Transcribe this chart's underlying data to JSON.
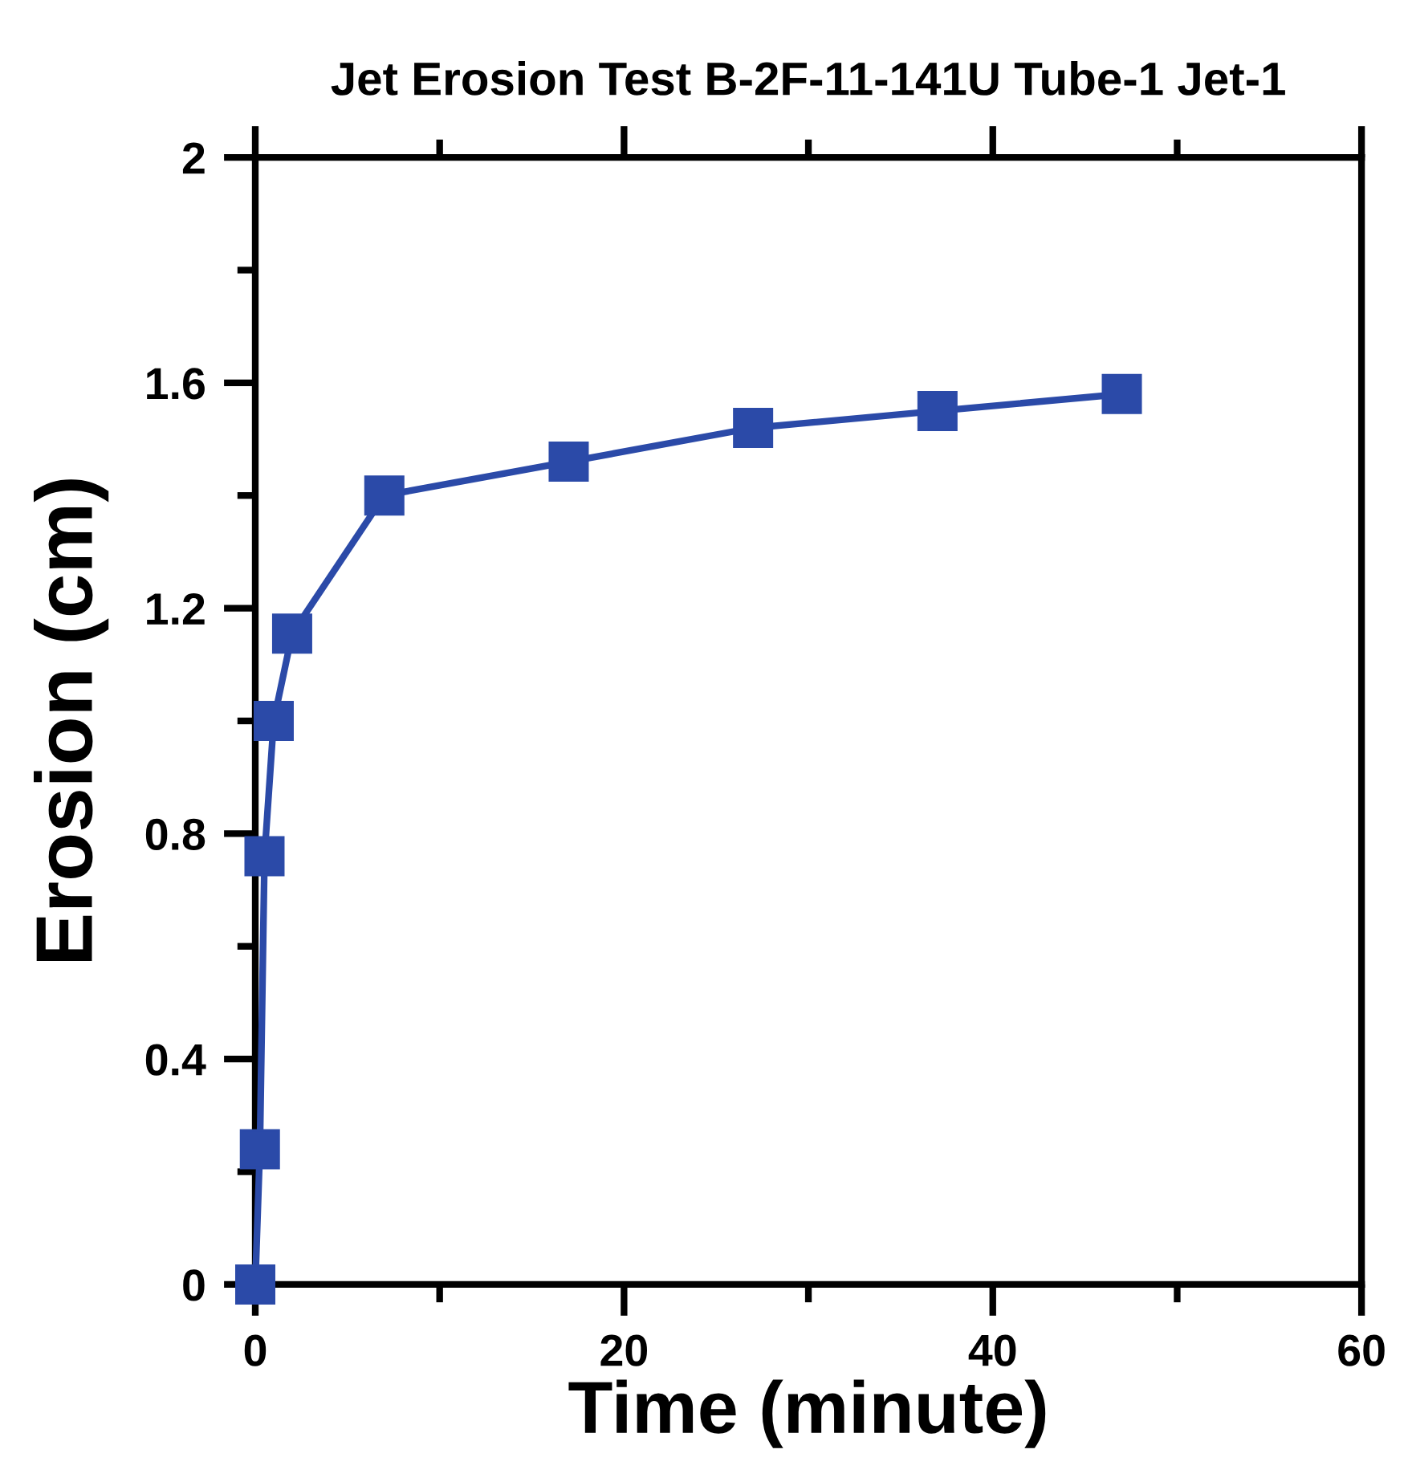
{
  "chart_data": {
    "type": "line",
    "title": "Jet Erosion Test B-2F-11-141U Tube-1 Jet-1",
    "xlabel": "Time (minute)",
    "ylabel": "Erosion (cm)",
    "x": [
      0,
      0.25,
      0.5,
      1,
      2,
      7,
      17,
      27,
      37,
      47
    ],
    "series": [
      {
        "color": "#2b4aa8",
        "values": [
          0,
          0.24,
          0.76,
          1.0,
          1.155,
          1.4,
          1.46,
          1.52,
          1.55,
          1.58
        ]
      }
    ],
    "xlim": [
      0,
      60
    ],
    "ylim": [
      0,
      2
    ],
    "xticks": [
      0,
      {
        "value": 10,
        "label": null
      },
      20,
      {
        "value": 30,
        "label": null
      },
      40,
      {
        "value": 50,
        "label": null
      },
      60
    ],
    "yticks": [
      0,
      {
        "value": 0.2,
        "label": null
      },
      0.4,
      {
        "value": 0.6,
        "label": null
      },
      0.8,
      {
        "value": 1.0,
        "label": null
      },
      1.2,
      {
        "value": 1.4,
        "label": null
      },
      1.6,
      {
        "value": 1.8,
        "label": null
      },
      2
    ],
    "marker": "square",
    "line_style": "solid",
    "grid": false,
    "legend": false
  }
}
